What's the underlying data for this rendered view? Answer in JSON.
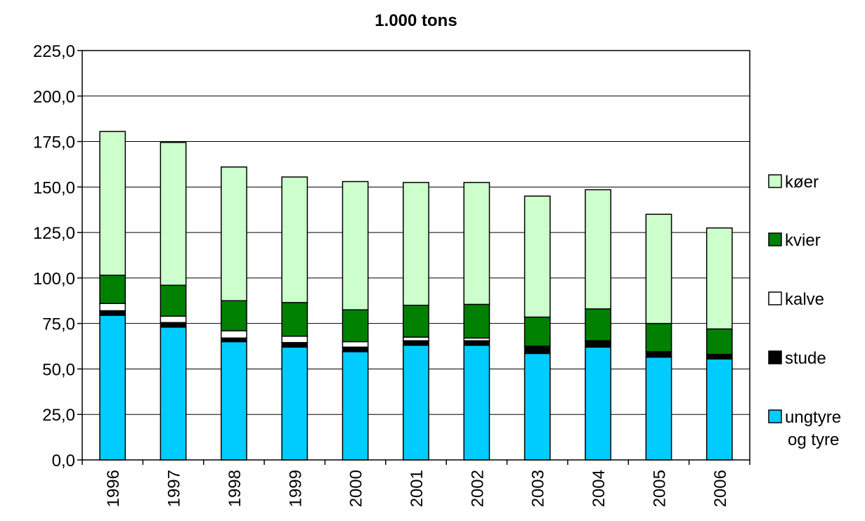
{
  "chart_data": {
    "type": "bar",
    "stacked": true,
    "title": "1.000 tons",
    "xlabel": "",
    "ylabel": "",
    "categories": [
      "1996",
      "1997",
      "1998",
      "1999",
      "2000",
      "2001",
      "2002",
      "2003",
      "2004",
      "2005",
      "2006"
    ],
    "ylim": [
      0,
      225
    ],
    "y_ticks": [
      "0,0",
      "25,0",
      "50,0",
      "75,0",
      "100,0",
      "125,0",
      "150,0",
      "175,0",
      "200,0",
      "225,0"
    ],
    "grid": true,
    "legend_position": "right",
    "series": [
      {
        "name": "ungtyre og tyre",
        "color": "#00ccff",
        "values": [
          79.5,
          73.0,
          65.0,
          62.0,
          59.5,
          63.0,
          63.0,
          58.5,
          62.0,
          56.5,
          55.5
        ]
      },
      {
        "name": "stude",
        "color": "#000000",
        "values": [
          2.5,
          2.5,
          2.0,
          2.5,
          2.5,
          2.5,
          2.5,
          4.0,
          3.5,
          3.0,
          2.5
        ]
      },
      {
        "name": "kalve",
        "color": "#ffffff",
        "values": [
          4.0,
          3.5,
          4.0,
          3.5,
          3.0,
          2.0,
          1.5,
          0.0,
          0.0,
          0.0,
          0.0
        ]
      },
      {
        "name": "kvier",
        "color": "#008000",
        "values": [
          15.5,
          17.0,
          16.5,
          18.5,
          17.5,
          17.5,
          18.5,
          16.0,
          17.5,
          15.5,
          14.0
        ]
      },
      {
        "name": "køer",
        "color": "#ccffcc",
        "values": [
          79.0,
          78.5,
          73.5,
          69.0,
          70.5,
          67.5,
          67.0,
          66.5,
          65.5,
          60.0,
          55.5
        ]
      }
    ]
  }
}
